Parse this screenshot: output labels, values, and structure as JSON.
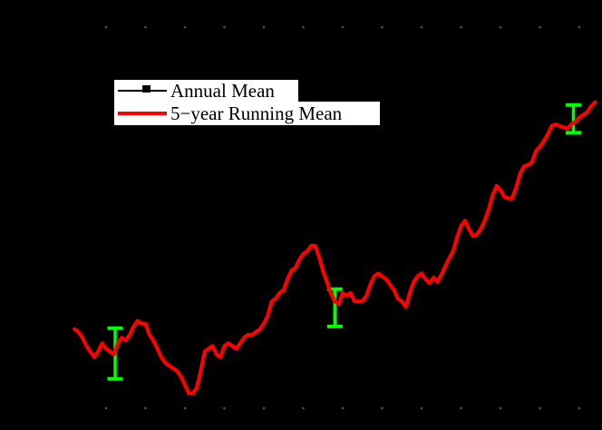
{
  "colors": {
    "background": "#000000",
    "annual_mean": "#000000",
    "running_mean": "#ff0000",
    "uncertainty_bars": "#00ff00",
    "legend_background": "#ffffff",
    "tick_dots": "#4f4f4f"
  },
  "legend": {
    "entries": [
      {
        "label": "Annual Mean",
        "line_color": "#000000",
        "marker": "filled-square"
      },
      {
        "label": "5−year Running Mean",
        "line_color": "#ff0000",
        "marker": "none"
      }
    ]
  },
  "chart_data": {
    "type": "line",
    "title": "",
    "xlabel": "",
    "ylabel": "",
    "xlim": [
      1880,
      2015
    ],
    "ylim": [
      -0.52,
      0.86
    ],
    "grid": false,
    "legend_position": "upper-left",
    "x_minor_ticks": [
      1890,
      1900,
      1910,
      1920,
      1930,
      1940,
      1950,
      1960,
      1970,
      1980,
      1990,
      2000,
      2010
    ],
    "series": [
      {
        "name": "Annual Mean",
        "color": "#000000",
        "marker": "square",
        "x": [],
        "values": []
      },
      {
        "name": "5−year Running Mean",
        "color": "#ff0000",
        "marker": "none",
        "x": [
          1882,
          1883,
          1884,
          1885,
          1886,
          1887,
          1888,
          1889,
          1890,
          1891,
          1892,
          1893,
          1894,
          1895,
          1896,
          1897,
          1898,
          1899,
          1900,
          1901,
          1902,
          1903,
          1904,
          1905,
          1906,
          1907,
          1908,
          1909,
          1910,
          1911,
          1912,
          1913,
          1914,
          1915,
          1916,
          1917,
          1918,
          1919,
          1920,
          1921,
          1922,
          1923,
          1924,
          1925,
          1926,
          1927,
          1928,
          1929,
          1930,
          1931,
          1932,
          1933,
          1934,
          1935,
          1936,
          1937,
          1938,
          1939,
          1940,
          1941,
          1942,
          1943,
          1944,
          1945,
          1946,
          1947,
          1948,
          1949,
          1950,
          1951,
          1952,
          1953,
          1954,
          1955,
          1956,
          1957,
          1958,
          1959,
          1960,
          1961,
          1962,
          1963,
          1964,
          1965,
          1966,
          1967,
          1968,
          1969,
          1970,
          1971,
          1972,
          1973,
          1974,
          1975,
          1976,
          1977,
          1978,
          1979,
          1980,
          1981,
          1982,
          1983,
          1984,
          1985,
          1986,
          1987,
          1988,
          1989,
          1990,
          1991,
          1992,
          1993,
          1994,
          1995,
          1996,
          1997,
          1998,
          1999,
          2000,
          2001,
          2002,
          2003,
          2004,
          2005,
          2006,
          2007,
          2008,
          2009,
          2010,
          2011,
          2012,
          2013,
          2014
        ],
        "values": [
          -0.23,
          -0.24,
          -0.26,
          -0.29,
          -0.31,
          -0.33,
          -0.31,
          -0.28,
          -0.3,
          -0.31,
          -0.32,
          -0.28,
          -0.26,
          -0.27,
          -0.25,
          -0.22,
          -0.2,
          -0.21,
          -0.21,
          -0.25,
          -0.27,
          -0.3,
          -0.33,
          -0.35,
          -0.36,
          -0.37,
          -0.38,
          -0.4,
          -0.43,
          -0.46,
          -0.46,
          -0.44,
          -0.38,
          -0.31,
          -0.3,
          -0.29,
          -0.32,
          -0.33,
          -0.29,
          -0.28,
          -0.29,
          -0.3,
          -0.28,
          -0.26,
          -0.25,
          -0.25,
          -0.24,
          -0.23,
          -0.21,
          -0.18,
          -0.13,
          -0.12,
          -0.1,
          -0.09,
          -0.05,
          -0.02,
          -0.01,
          0.02,
          0.04,
          0.05,
          0.07,
          0.07,
          0.03,
          -0.02,
          -0.06,
          -0.1,
          -0.13,
          -0.14,
          -0.1,
          -0.11,
          -0.1,
          -0.13,
          -0.13,
          -0.13,
          -0.11,
          -0.07,
          -0.04,
          -0.03,
          -0.04,
          -0.05,
          -0.07,
          -0.09,
          -0.12,
          -0.13,
          -0.15,
          -0.1,
          -0.06,
          -0.04,
          -0.03,
          -0.05,
          -0.065,
          -0.045,
          -0.06,
          -0.035,
          -0.005,
          0.025,
          0.05,
          0.1,
          0.14,
          0.16,
          0.13,
          0.105,
          0.11,
          0.13,
          0.16,
          0.2,
          0.25,
          0.285,
          0.27,
          0.245,
          0.24,
          0.24,
          0.28,
          0.33,
          0.355,
          0.36,
          0.37,
          0.41,
          0.425,
          0.445,
          0.47,
          0.5,
          0.505,
          0.5,
          0.495,
          0.49,
          0.505,
          0.515,
          0.53,
          0.54,
          0.55,
          0.57,
          0.585
        ]
      }
    ],
    "error_bars": [
      {
        "year": 1892.3,
        "center": -0.317,
        "half_range": 0.091,
        "color": "#00ff00"
      },
      {
        "year": 1948.0,
        "center": -0.153,
        "half_range": 0.067,
        "color": "#00ff00"
      },
      {
        "year": 2008.5,
        "center": 0.525,
        "half_range": 0.05,
        "color": "#00ff00"
      }
    ]
  }
}
